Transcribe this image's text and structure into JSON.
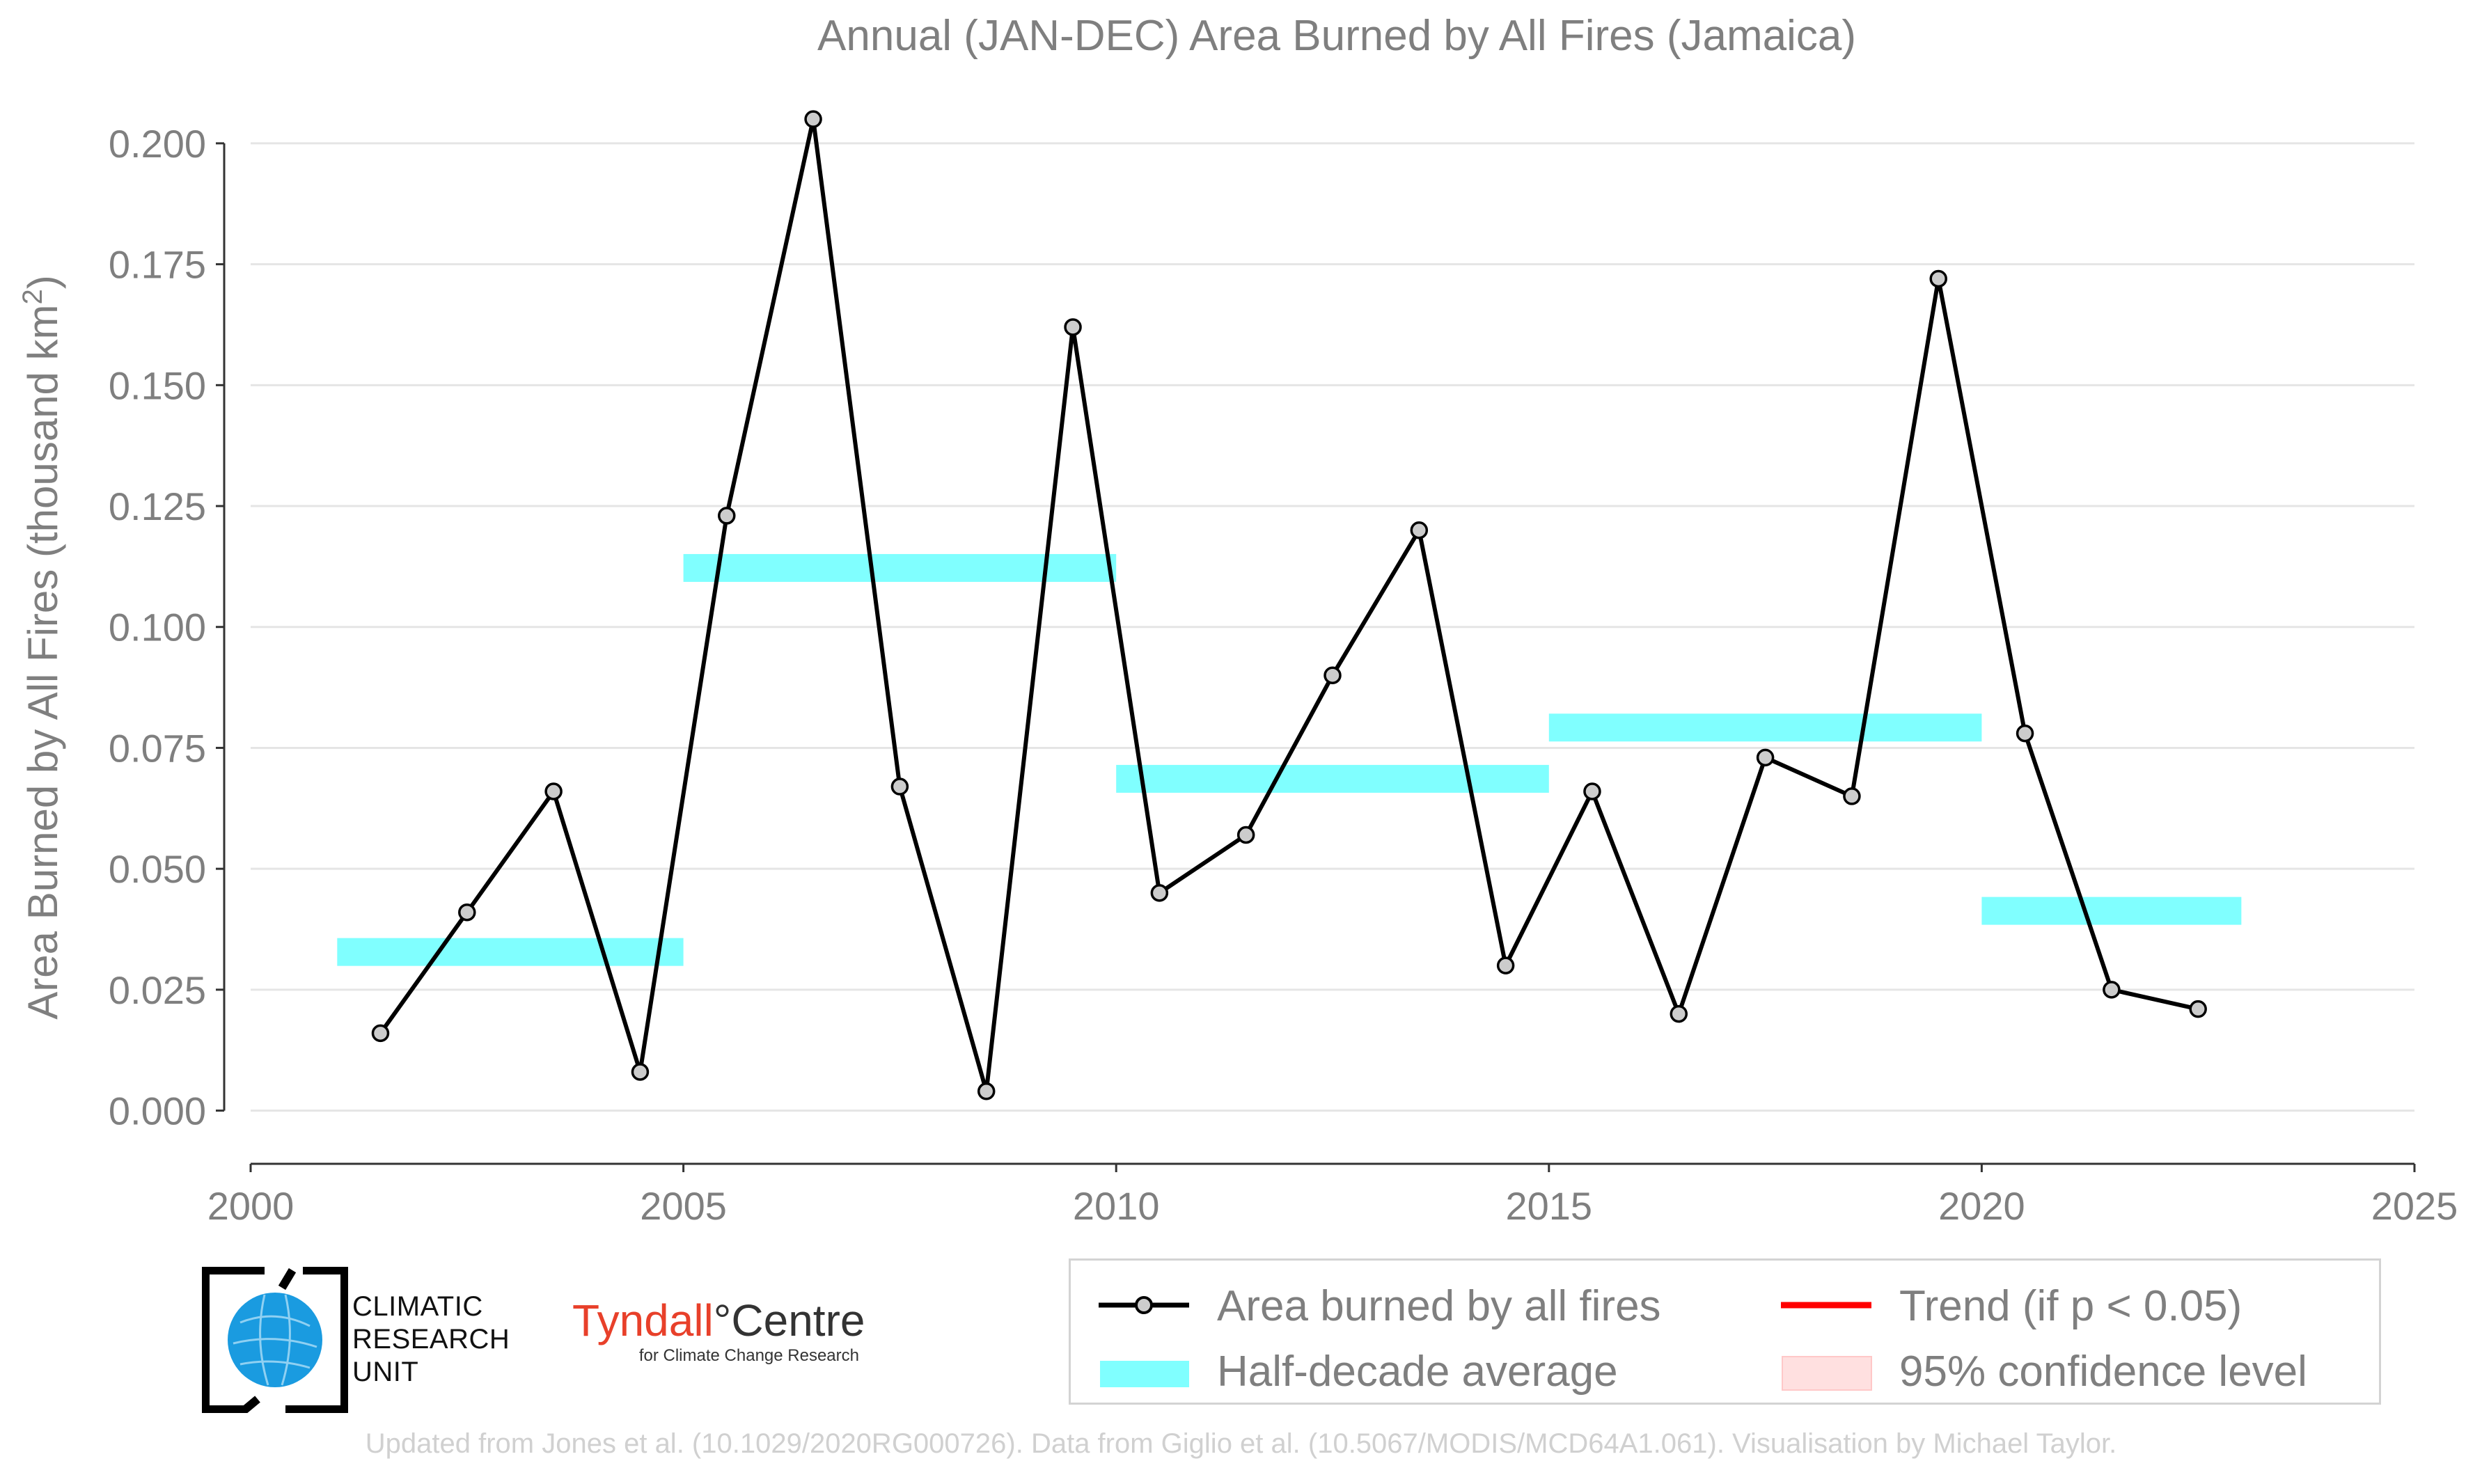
{
  "chart_data": {
    "type": "line",
    "title": "Annual (JAN-DEC) Area Burned by All Fires (Jamaica)",
    "xlabel": "",
    "ylabel": "Area Burned by All Fires (thousand km²)",
    "ylabel_main": "Area Burned by All Fires (thousand km",
    "ylabel_sup": "2",
    "ylabel_close": ")",
    "xlim": [
      2000,
      2025
    ],
    "ylim": [
      -0.011,
      0.2115
    ],
    "x_ticks": [
      2000,
      2005,
      2010,
      2015,
      2020,
      2025
    ],
    "x_tick_labels": [
      "2000",
      "2005",
      "2010",
      "2015",
      "2020",
      "2025"
    ],
    "y_ticks": [
      0,
      0.025,
      0.05,
      0.075,
      0.1,
      0.125,
      0.15,
      0.175,
      0.2
    ],
    "y_tick_labels": [
      "0.000",
      "0.025",
      "0.050",
      "0.075",
      "0.100",
      "0.125",
      "0.150",
      "0.175",
      "0.200"
    ],
    "grid": true,
    "series": [
      {
        "name": "Area burned by all fires",
        "x": [
          2001.5,
          2002.5,
          2003.5,
          2004.5,
          2005.5,
          2006.5,
          2007.5,
          2008.5,
          2009.5,
          2010.5,
          2011.5,
          2012.5,
          2013.5,
          2014.5,
          2015.5,
          2016.5,
          2017.5,
          2018.5,
          2019.5,
          2020.5,
          2021.5,
          2022.5
        ],
        "values": [
          0.016,
          0.041,
          0.066,
          0.008,
          0.123,
          0.205,
          0.067,
          0.004,
          0.162,
          0.045,
          0.057,
          0.09,
          0.12,
          0.03,
          0.066,
          0.02,
          0.073,
          0.065,
          0.172,
          0.078,
          0.025,
          0.021
        ]
      }
    ],
    "half_decade_average": [
      {
        "start": 2001,
        "end": 2005,
        "value": 0.0328
      },
      {
        "start": 2005,
        "end": 2010,
        "value": 0.1122
      },
      {
        "start": 2010,
        "end": 2015,
        "value": 0.0686
      },
      {
        "start": 2015,
        "end": 2020,
        "value": 0.0792
      },
      {
        "start": 2020,
        "end": 2023,
        "value": 0.0413
      }
    ],
    "legend": {
      "position": "bottom-right",
      "items": [
        {
          "label": "Area burned by all fires",
          "kind": "line-marker"
        },
        {
          "label": "Trend (if p < 0.05)",
          "kind": "line"
        },
        {
          "label": "Half-decade average",
          "kind": "band"
        },
        {
          "label": "95% confidence level",
          "kind": "fill"
        }
      ]
    }
  },
  "colors": {
    "series": "#000000",
    "marker_fill": "#cccccc",
    "half_decade": "#80ffff",
    "trend": "#ff0000",
    "confidence": "#ffe0e0",
    "axis_text": "#7f7f7f",
    "grid": "#e5e5e5",
    "tyndall_red": "#e8402a",
    "cru_blue": "#1a9be0"
  },
  "logos": {
    "cru": {
      "lines": [
        "CLIMATIC",
        "RESEARCH",
        "UNIT"
      ]
    },
    "tyndall": {
      "name_part1": "Tyndall",
      "degree": "°",
      "name_part2": "Centre",
      "subtitle": "for Climate Change Research"
    }
  },
  "footer": "Updated from Jones et al. (10.1029/2020RG000726). Data from Giglio et al. (10.5067/MODIS/MCD64A1.061). Visualisation by Michael Taylor."
}
